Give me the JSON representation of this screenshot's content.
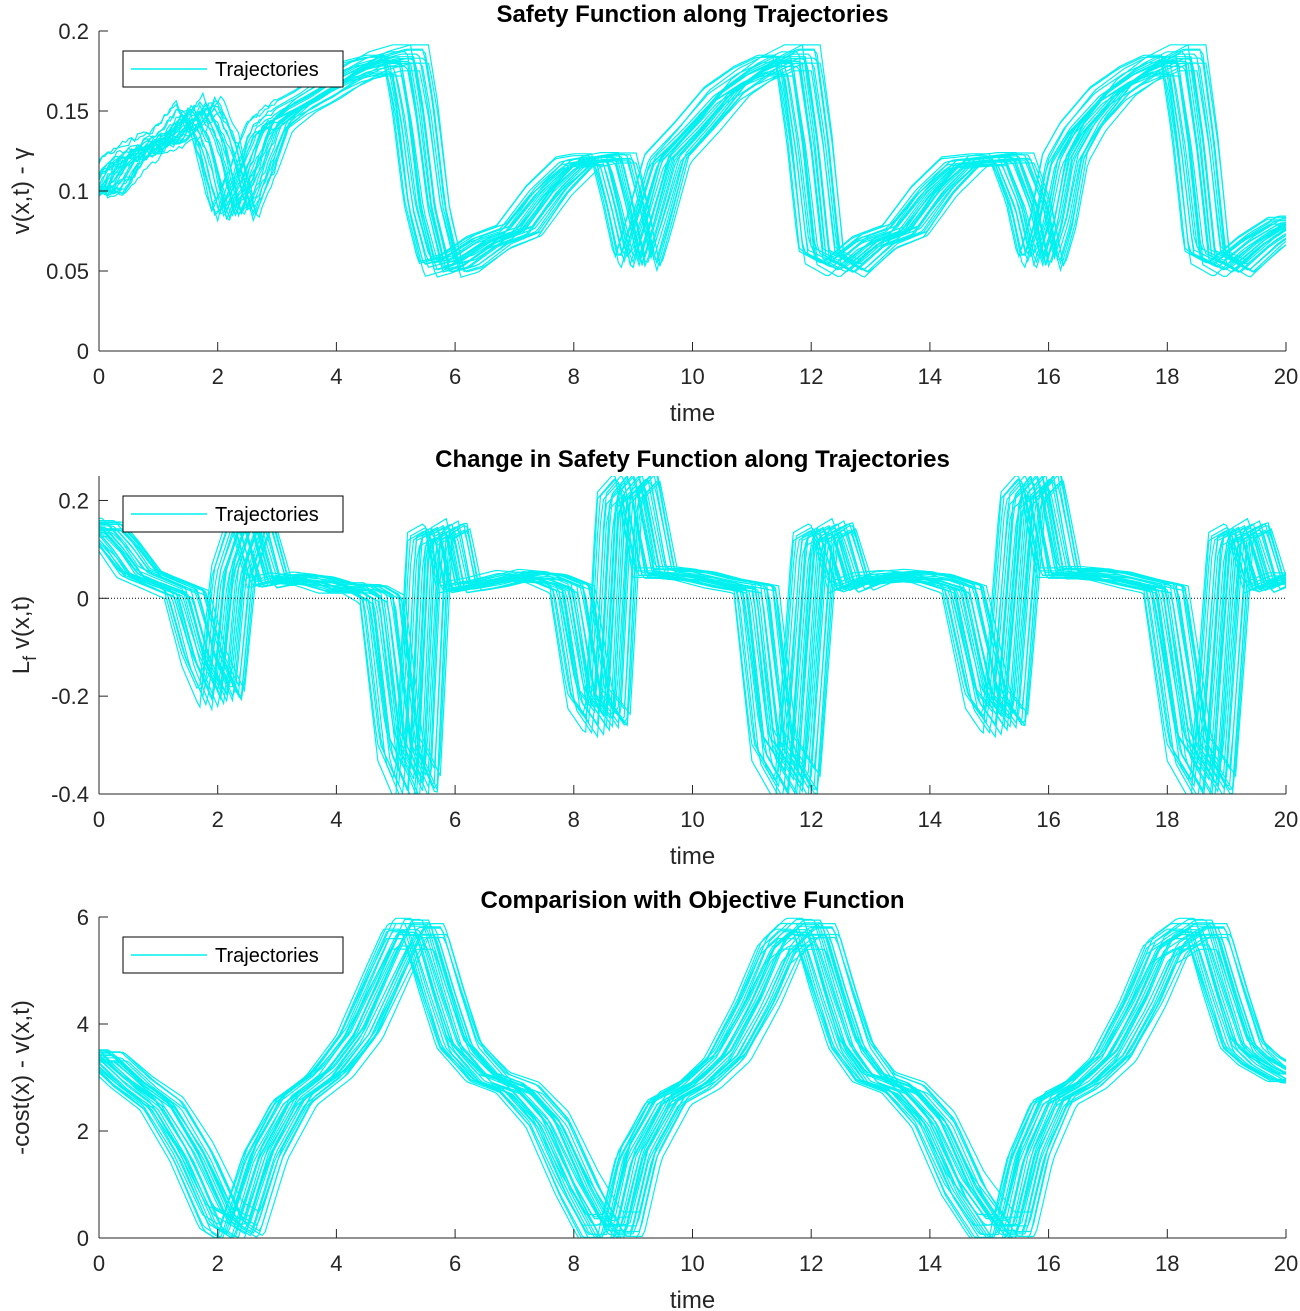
{
  "figure": {
    "background": "#ffffff",
    "series_color": "#00f0f0"
  },
  "chart_data": [
    {
      "type": "line",
      "title": "Safety Function along Trajectories",
      "xlabel": "time",
      "ylabel": "v(x,t) - γ",
      "xlim": [
        0,
        20
      ],
      "ylim": [
        0,
        0.2
      ],
      "xticks": [
        "0",
        "2",
        "4",
        "6",
        "8",
        "10",
        "12",
        "14",
        "16",
        "18",
        "20"
      ],
      "yticks": [
        "0",
        "0.05",
        "0.1",
        "0.15",
        "0.2"
      ],
      "legend": {
        "location": "top-left",
        "entries": [
          "Trajectories"
        ]
      },
      "zero_line": true,
      "series": [
        {
          "name": "Trajectories",
          "trajectory_count": 30,
          "x": [
            0,
            0.4,
            0.8,
            1.2,
            1.6,
            1.9,
            2.2,
            2.5,
            2.8,
            3.2,
            3.6,
            4.0,
            4.4,
            4.8,
            5.1,
            5.25,
            5.45,
            5.7,
            6.0,
            6.5,
            7.0,
            7.5,
            8.0,
            8.3,
            8.6,
            8.8,
            9.0,
            9.2,
            9.5,
            10.0,
            10.5,
            11.0,
            11.4,
            11.7,
            11.9,
            12.1,
            12.5,
            13.0,
            13.5,
            14.0,
            14.5,
            15.0,
            15.3,
            15.6,
            15.8,
            16.0,
            16.2,
            16.5,
            17.0,
            17.5,
            17.9,
            18.2,
            18.4,
            18.6,
            19.0,
            19.5,
            20.0
          ],
          "y": [
            0.1,
            0.12,
            0.128,
            0.135,
            0.153,
            0.13,
            0.085,
            0.11,
            0.14,
            0.152,
            0.16,
            0.17,
            0.178,
            0.182,
            0.182,
            0.15,
            0.09,
            0.052,
            0.055,
            0.068,
            0.075,
            0.1,
            0.118,
            0.12,
            0.12,
            0.09,
            0.055,
            0.08,
            0.12,
            0.14,
            0.162,
            0.175,
            0.182,
            0.182,
            0.13,
            0.06,
            0.052,
            0.068,
            0.075,
            0.1,
            0.118,
            0.12,
            0.12,
            0.09,
            0.055,
            0.08,
            0.12,
            0.14,
            0.162,
            0.175,
            0.182,
            0.182,
            0.13,
            0.06,
            0.052,
            0.068,
            0.08
          ]
        }
      ]
    },
    {
      "type": "line",
      "title": "Change in Safety Function along Trajectories",
      "xlabel": "time",
      "ylabel": "L_f v(x,t)",
      "xlim": [
        0,
        20
      ],
      "ylim": [
        -0.4,
        0.25
      ],
      "xticks": [
        "0",
        "2",
        "4",
        "6",
        "8",
        "10",
        "12",
        "14",
        "16",
        "18",
        "20"
      ],
      "yticks": [
        "-0.4",
        "-0.2",
        "0",
        "0.2"
      ],
      "legend": {
        "location": "top-left",
        "entries": [
          "Trajectories"
        ]
      },
      "zero_line": true,
      "series": [
        {
          "name": "Trajectories",
          "trajectory_count": 30,
          "x": [
            0,
            0.3,
            0.6,
            1.0,
            1.4,
            1.7,
            2.0,
            2.2,
            2.5,
            2.8,
            3.2,
            3.6,
            4.0,
            4.4,
            4.7,
            5.0,
            5.3,
            5.5,
            5.8,
            6.0,
            6.5,
            7.0,
            7.5,
            7.9,
            8.2,
            8.5,
            8.7,
            9.0,
            9.3,
            9.6,
            10.0,
            10.5,
            11.0,
            11.3,
            11.7,
            12.0,
            12.3,
            12.6,
            13.0,
            13.5,
            14.0,
            14.5,
            14.9,
            15.2,
            15.5,
            15.8,
            16.1,
            16.5,
            17.0,
            17.5,
            17.9,
            18.3,
            18.7,
            19.0,
            19.3,
            19.6,
            20.0
          ],
          "y": [
            0.14,
            0.1,
            0.05,
            0.03,
            0.01,
            -0.12,
            -0.2,
            0.05,
            0.16,
            0.03,
            0.04,
            0.035,
            0.02,
            0.02,
            0.0,
            -0.3,
            -0.38,
            0.12,
            0.14,
            0.02,
            0.03,
            0.045,
            0.04,
            0.02,
            -0.2,
            -0.25,
            0.2,
            0.24,
            0.05,
            0.05,
            0.045,
            0.03,
            0.02,
            -0.3,
            -0.38,
            0.12,
            0.14,
            0.02,
            0.04,
            0.045,
            0.04,
            0.02,
            -0.2,
            -0.25,
            0.2,
            0.24,
            0.05,
            0.05,
            0.045,
            0.03,
            0.02,
            -0.3,
            -0.38,
            0.12,
            0.14,
            0.02,
            0.04
          ]
        }
      ]
    },
    {
      "type": "line",
      "title": "Comparision with Objective Function",
      "xlabel": "time",
      "ylabel": "-cost(x) - v(x,t)",
      "xlim": [
        0,
        20
      ],
      "ylim": [
        0,
        6
      ],
      "xticks": [
        "0",
        "2",
        "4",
        "6",
        "8",
        "10",
        "12",
        "14",
        "16",
        "18",
        "20"
      ],
      "yticks": [
        "0",
        "2",
        "4",
        "6"
      ],
      "legend": {
        "location": "top-left",
        "entries": [
          "Trajectories"
        ]
      },
      "zero_line": true,
      "series": [
        {
          "name": "Trajectories",
          "trajectory_count": 30,
          "x": [
            0,
            0.5,
            1.0,
            1.5,
            2.0,
            2.3,
            2.7,
            3.2,
            3.8,
            4.3,
            4.8,
            5.1,
            5.4,
            5.7,
            6.0,
            6.5,
            7.0,
            7.5,
            8.0,
            8.4,
            8.7,
            9.0,
            9.5,
            10.0,
            10.5,
            11.0,
            11.4,
            11.7,
            12.0,
            12.3,
            12.6,
            13.0,
            13.5,
            14.0,
            14.5,
            15.0,
            15.3,
            15.6,
            16.0,
            16.5,
            17.0,
            17.5,
            17.9,
            18.3,
            18.6,
            18.9,
            19.2,
            19.5,
            20.0
          ],
          "y": [
            3.4,
            2.9,
            2.5,
            1.6,
            0.4,
            0.2,
            1.6,
            2.6,
            3.1,
            3.8,
            5.0,
            5.7,
            5.7,
            4.6,
            3.6,
            3.0,
            2.8,
            2.2,
            1.0,
            0.2,
            0.2,
            1.6,
            2.6,
            2.9,
            3.4,
            4.4,
            5.4,
            5.7,
            5.7,
            4.6,
            3.6,
            3.0,
            2.8,
            2.2,
            1.0,
            0.2,
            0.2,
            1.6,
            2.6,
            2.9,
            3.4,
            4.4,
            5.4,
            5.7,
            5.7,
            4.6,
            3.6,
            3.3,
            3.0
          ]
        }
      ]
    }
  ]
}
